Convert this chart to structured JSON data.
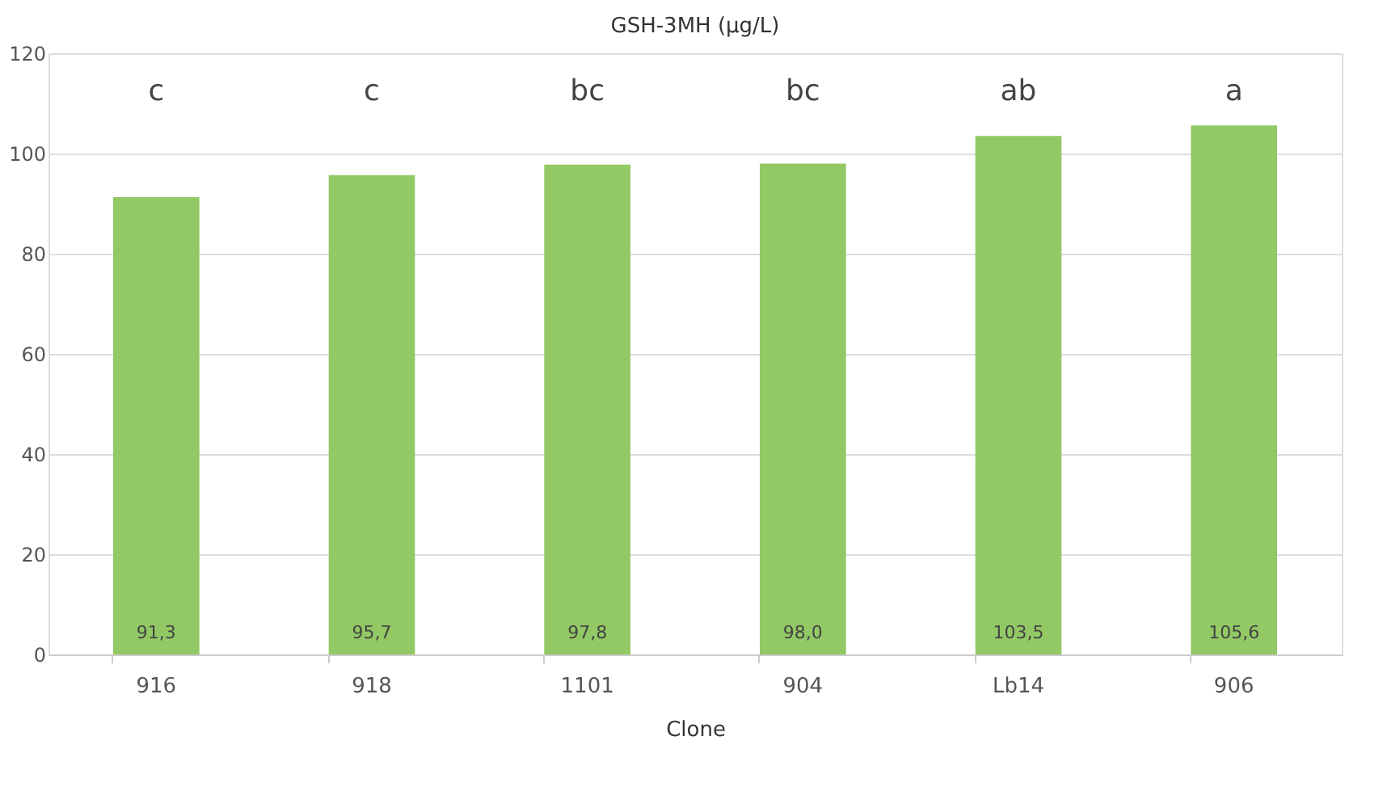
{
  "chart_data": {
    "type": "bar",
    "title": "GSH-3MH (µg/L)",
    "xlabel": "Clone",
    "categories": [
      "916",
      "918",
      "1101",
      "904",
      "Lb14",
      "906"
    ],
    "values": [
      91.3,
      95.7,
      97.8,
      98.0,
      103.5,
      105.6
    ],
    "value_labels": [
      "91,3",
      "95,7",
      "97,8",
      "98,0",
      "103,5",
      "105,6"
    ],
    "color": "#92c964",
    "ylim": [
      0,
      120
    ],
    "yticks": [
      0,
      20,
      40,
      60,
      80,
      100,
      120
    ],
    "grid": "y",
    "annotations": [
      "c",
      "c",
      "bc",
      "bc",
      "ab",
      "a"
    ]
  }
}
